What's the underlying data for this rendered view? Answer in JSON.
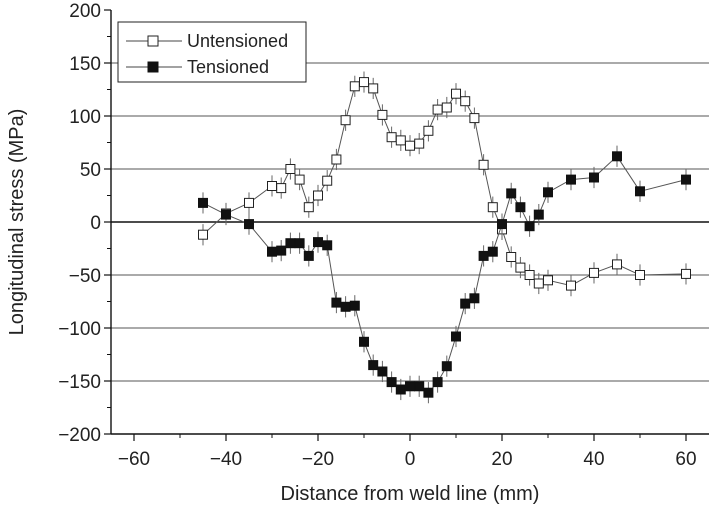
{
  "chart_data": {
    "type": "scatter",
    "title": "",
    "xlabel": "Distance from weld line (mm)",
    "ylabel": "Longitudinal stress (MPa)",
    "xlim": [
      -65,
      65
    ],
    "ylim": [
      -200,
      200
    ],
    "xticks": [
      -60,
      -40,
      -20,
      0,
      20,
      40,
      60
    ],
    "yticks": [
      -200,
      -150,
      -100,
      -50,
      0,
      50,
      100,
      150,
      200
    ],
    "grid": "horizontal lines at every y tick",
    "legend_position": "top-left",
    "error_bars": "vertical, approx ±10 MPa",
    "series": [
      {
        "name": "Untensioned",
        "marker": "open-square",
        "x": [
          -45,
          -40,
          -35,
          -30,
          -28,
          -26,
          -24,
          -22,
          -20,
          -18,
          -16,
          -14,
          -12,
          -10,
          -8,
          -6,
          -4,
          -2,
          0,
          2,
          4,
          6,
          8,
          10,
          12,
          14,
          16,
          18,
          20,
          22,
          24,
          26,
          28,
          30,
          35,
          40,
          45,
          50,
          60
        ],
        "y": [
          -12,
          8,
          18,
          34,
          32,
          50,
          40,
          14,
          25,
          39,
          59,
          96,
          128,
          132,
          126,
          101,
          80,
          77,
          72,
          74,
          86,
          106,
          108,
          121,
          114,
          98,
          54,
          14,
          -7,
          -33,
          -43,
          -50,
          -58,
          -55,
          -60,
          -48,
          -40,
          -50,
          -49
        ]
      },
      {
        "name": "Tensioned",
        "marker": "filled-square",
        "x": [
          -45,
          -40,
          -35,
          -30,
          -28,
          -26,
          -24,
          -22,
          -20,
          -18,
          -16,
          -14,
          -12,
          -10,
          -8,
          -6,
          -4,
          -2,
          0,
          2,
          4,
          6,
          8,
          10,
          12,
          14,
          16,
          18,
          20,
          22,
          24,
          26,
          28,
          30,
          35,
          40,
          45,
          50,
          60
        ],
        "y": [
          18,
          7,
          -2,
          -28,
          -27,
          -20,
          -20,
          -32,
          -19,
          -22,
          -76,
          -80,
          -79,
          -113,
          -135,
          -141,
          -151,
          -158,
          -155,
          -155,
          -161,
          -151,
          -136,
          -108,
          -77,
          -72,
          -32,
          -28,
          -2,
          27,
          14,
          -4,
          7,
          28,
          40,
          42,
          62,
          29,
          40
        ]
      }
    ]
  }
}
